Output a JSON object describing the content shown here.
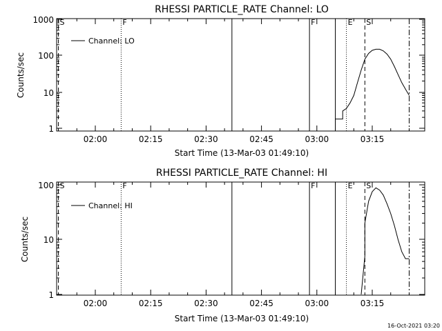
{
  "chart_data": [
    {
      "type": "line",
      "title": "RHESSI PARTICLE_RATE Channel: LO",
      "xlabel": "Start Time (13-Mar-03 01:49:10)",
      "ylabel": "Counts/sec",
      "y_scale": "log",
      "ylim": [
        1,
        1000
      ],
      "x_ticks": [
        "02:00",
        "02:15",
        "02:30",
        "02:45",
        "03:00",
        "03:15"
      ],
      "y_ticks": [
        "1",
        "10",
        "100",
        "1000"
      ],
      "legend": {
        "placement": "top-left",
        "entries": [
          "Channel: LO"
        ]
      },
      "markers": [
        {
          "label": "S",
          "time": "01:50",
          "style": "dashed"
        },
        {
          "label": "F",
          "time": "02:07",
          "style": "dotted"
        },
        {
          "label": "",
          "time": "02:37",
          "style": "solid"
        },
        {
          "label": "F",
          "time": "02:58",
          "style": "solid"
        },
        {
          "label": "",
          "time": "03:05",
          "style": "solid"
        },
        {
          "label": "E",
          "time": "03:08",
          "style": "dotted"
        },
        {
          "label": "S",
          "time": "03:13",
          "style": "dashed"
        },
        {
          "label": "",
          "time": "03:25",
          "style": "dashdot"
        }
      ],
      "series": [
        {
          "x": [
            "03:05",
            "03:05",
            "03:06",
            "03:07",
            "03:07",
            "03:08",
            "03:09",
            "03:10",
            "03:11",
            "03:12",
            "03:13",
            "03:14",
            "03:15",
            "03:16",
            "03:17",
            "03:18",
            "03:19",
            "03:20",
            "03:21",
            "03:22",
            "03:23",
            "03:24",
            "03:25"
          ],
          "values": [
            1,
            1.8,
            1.8,
            1.8,
            3,
            3.5,
            5,
            8,
            18,
            40,
            80,
            115,
            140,
            150,
            150,
            135,
            110,
            80,
            50,
            30,
            18,
            12,
            8
          ]
        }
      ]
    },
    {
      "type": "line",
      "title": "RHESSI PARTICLE_RATE Channel: HI",
      "xlabel": "Start Time (13-Mar-03 01:49:10)",
      "ylabel": "Counts/sec",
      "y_scale": "log",
      "ylim": [
        1,
        100
      ],
      "x_ticks": [
        "02:00",
        "02:15",
        "02:30",
        "02:45",
        "03:00",
        "03:15"
      ],
      "y_ticks": [
        "1",
        "10",
        "100"
      ],
      "legend": {
        "placement": "top-left",
        "entries": [
          "Channel: HI"
        ]
      },
      "markers": [
        {
          "label": "S",
          "time": "01:50",
          "style": "dashed"
        },
        {
          "label": "F",
          "time": "02:07",
          "style": "dotted"
        },
        {
          "label": "",
          "time": "02:37",
          "style": "solid"
        },
        {
          "label": "F",
          "time": "02:58",
          "style": "solid"
        },
        {
          "label": "",
          "time": "03:05",
          "style": "solid"
        },
        {
          "label": "E",
          "time": "03:08",
          "style": "dotted"
        },
        {
          "label": "S",
          "time": "03:13",
          "style": "dashed"
        },
        {
          "label": "",
          "time": "03:25",
          "style": "dashdot"
        }
      ],
      "series": [
        {
          "x": [
            "03:12",
            "03:13",
            "03:13",
            "03:14",
            "03:15",
            "03:16",
            "03:17",
            "03:18",
            "03:19",
            "03:20",
            "03:21",
            "03:22",
            "03:23",
            "03:24",
            "03:25"
          ],
          "values": [
            1,
            5,
            20,
            50,
            75,
            88,
            80,
            65,
            45,
            30,
            18,
            10,
            6,
            4.5,
            4.5
          ]
        }
      ]
    }
  ],
  "footer": {
    "date_stamp": "16-Oct-2021 03:20"
  }
}
